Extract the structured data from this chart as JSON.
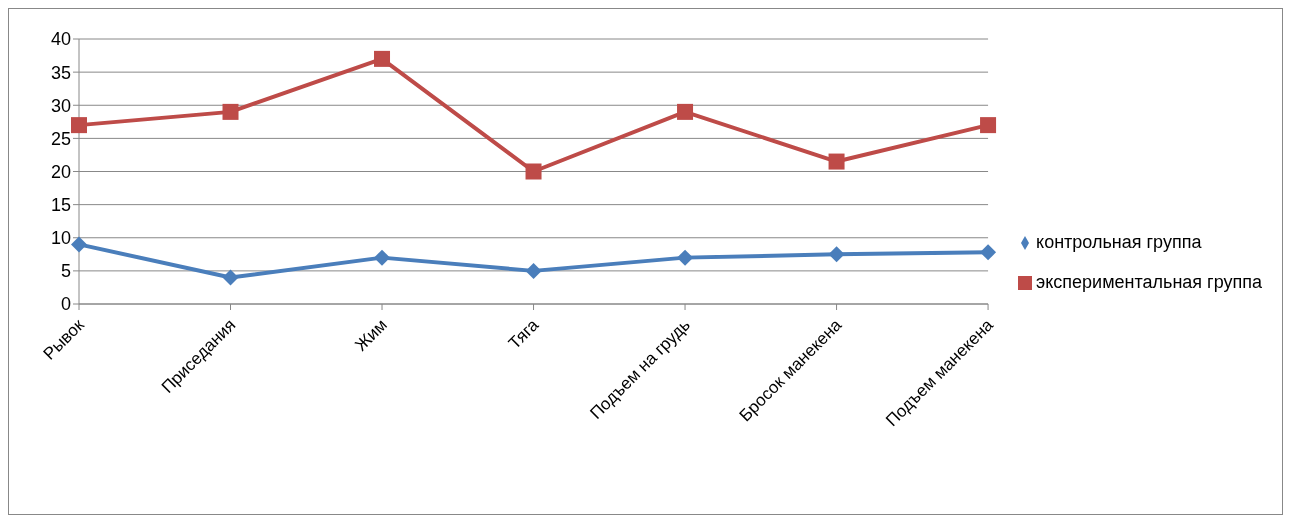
{
  "chart_data": {
    "type": "line",
    "categories": [
      "Рывок",
      "Приседания",
      "Жим",
      "Тяга",
      "Подъем на грудь",
      "Бросок манекена",
      "Подъем манекена"
    ],
    "series": [
      {
        "name": "экспериментальная группа",
        "color": "#be4b48",
        "marker": "square",
        "values": [
          27,
          29,
          37,
          20,
          29,
          21.5,
          27
        ]
      },
      {
        "name": "контрольная группа",
        "color": "#4a7ebb",
        "marker": "diamond",
        "values": [
          9,
          4,
          7,
          5,
          7,
          7.5,
          7.8
        ]
      }
    ],
    "ylim": [
      0,
      40
    ],
    "yticks": [
      0,
      5,
      10,
      15,
      20,
      25,
      30,
      35,
      40
    ],
    "grid": "y",
    "legend": "right"
  }
}
